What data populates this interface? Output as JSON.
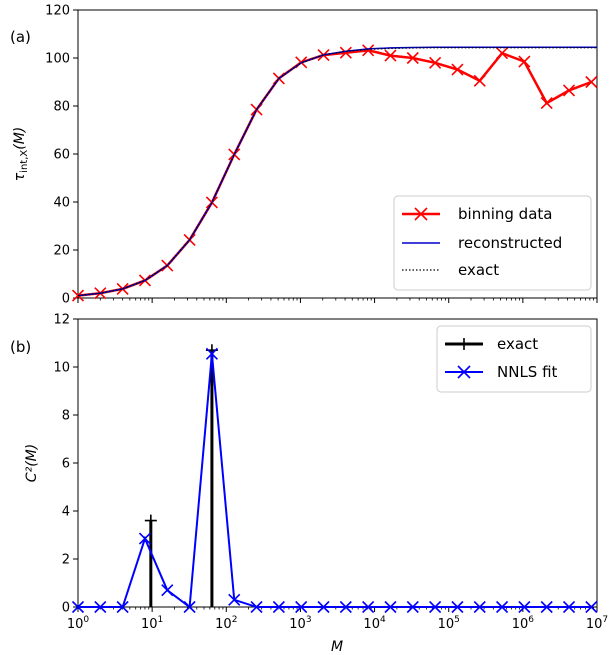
{
  "chart_data": [
    {
      "type": "line",
      "panel_label": "(a)",
      "ylabel": "τint,X(M)",
      "xlabel": "",
      "xscale": "log",
      "xlim": [
        1,
        10000000
      ],
      "ylim": [
        0,
        120
      ],
      "yticks": [
        "0",
        "20",
        "40",
        "60",
        "80",
        "100",
        "120"
      ],
      "legend_position": "lower-right",
      "series": [
        {
          "name": "binning data",
          "color": "#ff0000",
          "style": "solid-with-x-markers",
          "x": [
            1,
            2,
            4,
            8,
            16,
            32,
            64,
            128,
            256,
            512,
            1024,
            2048,
            4096,
            8192,
            16384,
            32768,
            65536,
            131072,
            262144,
            524288,
            1048576,
            2097152,
            4194304,
            8388608
          ],
          "y": [
            1,
            2,
            3.8,
            7.3,
            13.5,
            24.2,
            39.8,
            59.8,
            78.5,
            91.5,
            98.2,
            101.2,
            102.2,
            103.2,
            101,
            100,
            98,
            95.2,
            90.5,
            102,
            98.5,
            81.2,
            86.5,
            90
          ]
        },
        {
          "name": "reconstructed",
          "color": "#0000cc",
          "style": "solid",
          "x": [
            1,
            2,
            4,
            8,
            16,
            32,
            64,
            128,
            256,
            512,
            1024,
            2048,
            4096,
            8192,
            16384,
            32768,
            65536,
            131072,
            262144,
            524288,
            1048576,
            2097152,
            4194304,
            10000000
          ],
          "y": [
            1,
            2,
            3.8,
            7.3,
            13.5,
            24.2,
            39.8,
            59.8,
            78.5,
            91.5,
            98,
            101.3,
            102.8,
            103.8,
            104.2,
            104.4,
            104.5,
            104.5,
            104.5,
            104.5,
            104.5,
            104.5,
            104.5,
            104.5
          ]
        },
        {
          "name": "exact",
          "color": "#000000",
          "style": "dotted",
          "x": [
            1,
            2,
            4,
            8,
            16,
            32,
            64,
            128,
            256,
            512,
            1024,
            2048,
            4096,
            8192,
            16384,
            32768,
            65536,
            131072,
            262144,
            524288,
            1048576,
            2097152,
            4194304,
            10000000
          ],
          "y": [
            1,
            2,
            3.8,
            7.3,
            13.5,
            24.2,
            39.8,
            59.8,
            78.5,
            91.5,
            98,
            101.3,
            102.8,
            103.6,
            104.0,
            104.2,
            104.3,
            104.3,
            104.3,
            104.3,
            104.3,
            104.3,
            104.3,
            104.3
          ]
        }
      ]
    },
    {
      "type": "line",
      "panel_label": "(b)",
      "ylabel": "C²(M)",
      "xlabel": "M",
      "xscale": "log",
      "xlim": [
        1,
        10000000
      ],
      "ylim": [
        0,
        12
      ],
      "yticks": [
        "0",
        "2",
        "4",
        "6",
        "8",
        "10",
        "12"
      ],
      "xticks": [
        {
          "value": 1,
          "base": "10",
          "exp": "0"
        },
        {
          "value": 10,
          "base": "10",
          "exp": "1"
        },
        {
          "value": 100,
          "base": "10",
          "exp": "2"
        },
        {
          "value": 1000,
          "base": "10",
          "exp": "3"
        },
        {
          "value": 10000,
          "base": "10",
          "exp": "4"
        },
        {
          "value": 100000,
          "base": "10",
          "exp": "5"
        },
        {
          "value": 1000000,
          "base": "10",
          "exp": "6"
        },
        {
          "value": 10000000,
          "base": "10",
          "exp": "7"
        }
      ],
      "legend_position": "upper-right",
      "series": [
        {
          "name": "exact",
          "color": "#000000",
          "style": "stem-with-plus-markers",
          "x": [
            9.6,
            64
          ],
          "y": [
            3.6,
            10.7
          ]
        },
        {
          "name": "NNLS fit",
          "color": "#0000ff",
          "style": "solid-with-x-markers",
          "x": [
            1,
            2,
            4,
            8,
            16,
            32,
            64,
            128,
            256,
            512,
            1024,
            2048,
            4096,
            8192,
            16384,
            32768,
            65536,
            131072,
            262144,
            524288,
            1048576,
            2097152,
            4194304,
            8388608
          ],
          "y": [
            0,
            0,
            0,
            2.85,
            0.7,
            0,
            10.55,
            0.3,
            0,
            0,
            0,
            0,
            0,
            0,
            0,
            0,
            0,
            0,
            0,
            0,
            0,
            0,
            0,
            0
          ]
        }
      ]
    }
  ]
}
